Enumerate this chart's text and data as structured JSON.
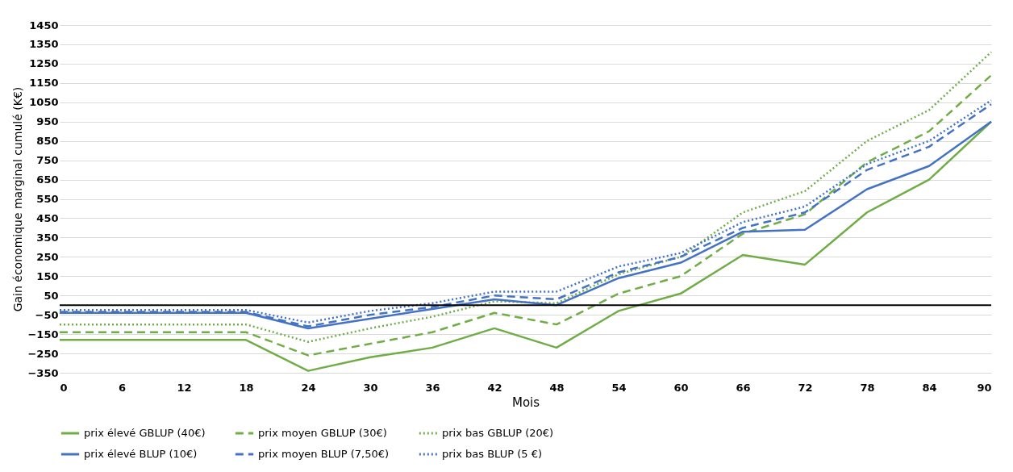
{
  "chart_data": {
    "type": "line",
    "xlabel": "Mois",
    "ylabel": "Gain économique marginal cumulé (K€)",
    "x": [
      0,
      6,
      12,
      18,
      24,
      30,
      36,
      42,
      48,
      54,
      60,
      66,
      72,
      78,
      84,
      90
    ],
    "xlim": [
      0,
      90
    ],
    "xticks": [
      0,
      6,
      12,
      18,
      24,
      30,
      36,
      42,
      48,
      54,
      60,
      66,
      72,
      78,
      84,
      90
    ],
    "ylim": [
      -350,
      1450
    ],
    "yticks": [
      -350,
      -250,
      -150,
      -50,
      50,
      150,
      250,
      350,
      450,
      550,
      650,
      750,
      850,
      950,
      1050,
      1150,
      1250,
      1350,
      1450
    ],
    "grid": "y",
    "legend": "bottom",
    "marker": "none",
    "ref_lines": [
      {
        "axis": "y",
        "value": 0,
        "color": "#000000"
      }
    ],
    "series": [
      {
        "name": "prix élevé GBLUP (40€)",
        "color": "#70ad47",
        "line_style": "solid",
        "values": [
          -180,
          -180,
          -180,
          -180,
          -340,
          -270,
          -220,
          -120,
          -220,
          -30,
          60,
          260,
          210,
          480,
          650,
          950
        ]
      },
      {
        "name": "prix moyen GBLUP (30€)",
        "color": "#70ad47",
        "line_style": "dashed",
        "values": [
          -140,
          -140,
          -140,
          -140,
          -260,
          -200,
          -140,
          -40,
          -100,
          60,
          150,
          370,
          470,
          740,
          900,
          1190
        ]
      },
      {
        "name": "prix bas GBLUP (20€)",
        "color": "#70ad47",
        "line_style": "dotted",
        "values": [
          -100,
          -100,
          -100,
          -100,
          -190,
          -120,
          -60,
          20,
          10,
          160,
          250,
          480,
          590,
          850,
          1010,
          1310
        ]
      },
      {
        "name": "prix élevé BLUP (10€)",
        "color": "#4472c4",
        "line_style": "solid",
        "values": [
          -40,
          -40,
          -40,
          -40,
          -120,
          -70,
          -20,
          30,
          0,
          140,
          220,
          380,
          390,
          600,
          720,
          950
        ]
      },
      {
        "name": "prix moyen BLUP (7,50€)",
        "color": "#4472c4",
        "line_style": "dashed",
        "values": [
          -35,
          -35,
          -35,
          -35,
          -110,
          -50,
          -10,
          50,
          30,
          170,
          250,
          400,
          480,
          700,
          820,
          1040
        ]
      },
      {
        "name": "prix bas BLUP (5 €)",
        "color": "#4472c4",
        "line_style": "dotted",
        "values": [
          -25,
          -25,
          -25,
          -25,
          -90,
          -30,
          10,
          70,
          70,
          200,
          270,
          430,
          510,
          730,
          850,
          1060
        ]
      }
    ]
  }
}
